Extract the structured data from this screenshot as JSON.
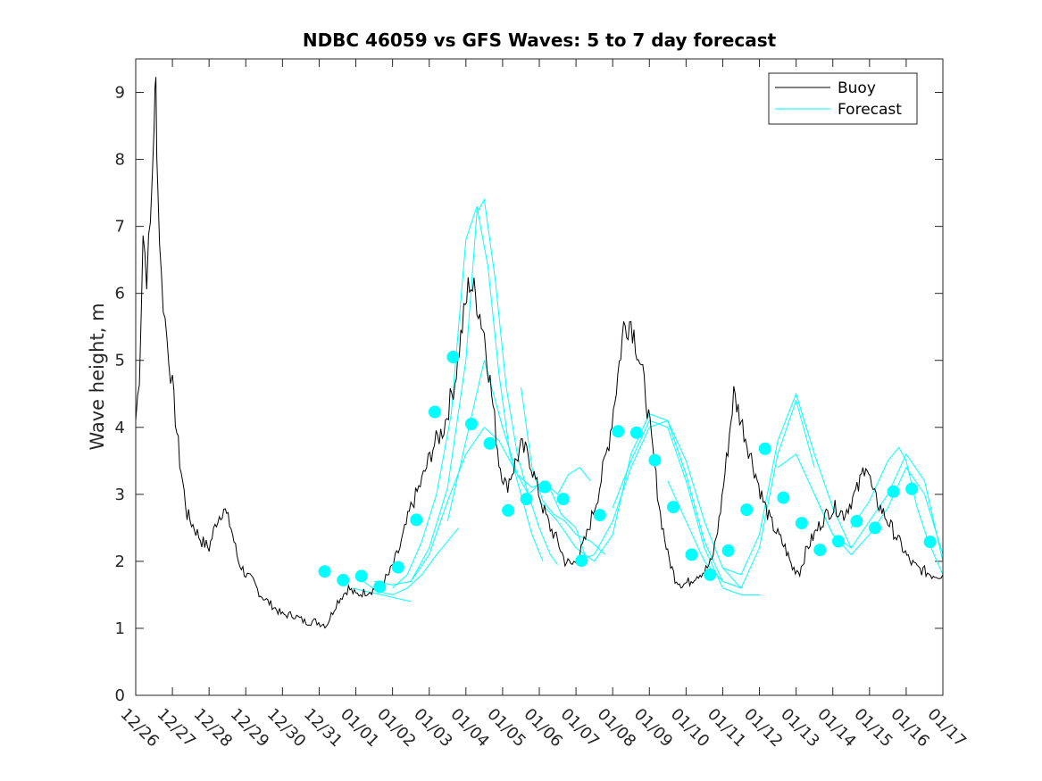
{
  "chart_data": {
    "type": "line",
    "title": "NDBC 46059 vs GFS Waves: 5 to 7 day forecast",
    "xlabel": "",
    "ylabel": "Wave height, m",
    "ylim": [
      0,
      9.5
    ],
    "yticks": [
      0,
      1,
      2,
      3,
      4,
      5,
      6,
      7,
      8,
      9
    ],
    "xlim": [
      0,
      22
    ],
    "xtick_labels": [
      "12/26",
      "12/27",
      "12/28",
      "12/29",
      "12/30",
      "12/31",
      "01/01",
      "01/02",
      "01/03",
      "01/04",
      "01/05",
      "01/06",
      "01/07",
      "01/08",
      "01/09",
      "01/10",
      "01/11",
      "01/12",
      "01/13",
      "01/14",
      "01/15",
      "01/16",
      "01/17"
    ],
    "x_units": "days since 12/26 00:00",
    "legend": {
      "position": "top-right",
      "entries": [
        "Buoy",
        "Forecast"
      ]
    },
    "colors": {
      "buoy": "#000000",
      "forecast": "#00ffff",
      "axis": "#262626"
    },
    "series": [
      {
        "name": "Buoy",
        "x": [
          0.0,
          0.1,
          0.2,
          0.3,
          0.4,
          0.5,
          0.55,
          0.6,
          0.7,
          0.8,
          0.9,
          1.0,
          1.2,
          1.4,
          1.6,
          1.8,
          2.0,
          2.2,
          2.4,
          2.6,
          2.8,
          3.0,
          3.2,
          3.4,
          3.6,
          3.8,
          4.0,
          4.3,
          4.6,
          4.9,
          5.2,
          5.5,
          5.8,
          6.0,
          6.3,
          6.6,
          6.9,
          7.2,
          7.5,
          7.8,
          8.1,
          8.4,
          8.7,
          8.9,
          9.1,
          9.3,
          9.5,
          9.7,
          9.9,
          10.1,
          10.3,
          10.5,
          10.7,
          10.9,
          11.1,
          11.3,
          11.5,
          11.7,
          11.9,
          12.1,
          12.3,
          12.6,
          12.9,
          13.1,
          13.3,
          13.5,
          13.7,
          13.9,
          14.1,
          14.3,
          14.5,
          14.7,
          14.9,
          15.1,
          15.3,
          15.5,
          15.7,
          15.9,
          16.1,
          16.3,
          16.5,
          16.7,
          16.9,
          17.1,
          17.3,
          17.5,
          17.7,
          17.9,
          18.1,
          18.3,
          18.5,
          18.7,
          18.9,
          19.1,
          19.3,
          19.5,
          19.7,
          19.9,
          20.1,
          20.3,
          20.5,
          20.7,
          20.9,
          21.1,
          21.3,
          21.5,
          21.7,
          21.9,
          22.0
        ],
        "y": [
          4.1,
          4.8,
          6.9,
          6.3,
          7.0,
          8.6,
          9.1,
          7.6,
          6.2,
          5.6,
          5.1,
          4.6,
          3.5,
          2.7,
          2.5,
          2.3,
          2.2,
          2.6,
          2.8,
          2.5,
          2.0,
          1.8,
          1.7,
          1.5,
          1.4,
          1.3,
          1.2,
          1.2,
          1.1,
          1.1,
          1.05,
          1.4,
          1.6,
          1.5,
          1.55,
          1.6,
          1.8,
          2.2,
          2.8,
          3.2,
          3.7,
          4.0,
          4.7,
          5.5,
          6.2,
          5.9,
          5.4,
          4.5,
          3.5,
          3.1,
          3.4,
          3.7,
          3.6,
          3.2,
          2.8,
          2.5,
          2.3,
          2.0,
          1.95,
          2.1,
          2.4,
          3.0,
          3.8,
          4.6,
          5.5,
          5.6,
          5.1,
          4.5,
          3.6,
          2.7,
          2.1,
          1.75,
          1.65,
          1.7,
          1.8,
          1.85,
          2.0,
          2.6,
          3.5,
          4.5,
          4.1,
          3.7,
          3.3,
          2.9,
          2.6,
          2.4,
          2.2,
          1.9,
          1.85,
          2.2,
          2.4,
          2.6,
          2.75,
          2.8,
          2.7,
          2.9,
          3.1,
          3.5,
          3.0,
          2.8,
          2.6,
          2.4,
          2.2,
          2.0,
          1.9,
          1.85,
          1.8,
          1.8,
          1.8
        ]
      },
      {
        "name": "Forecast",
        "lines": [
          {
            "x": [
              5.9,
              6.3,
              6.7,
              7.1,
              7.5
            ],
            "y": [
              1.6,
              1.55,
              1.5,
              1.45,
              1.4
            ]
          },
          {
            "x": [
              6.2,
              6.6,
              7.0,
              7.4,
              7.8,
              8.2,
              8.5,
              8.8
            ],
            "y": [
              1.7,
              1.55,
              1.5,
              1.6,
              1.8,
              2.1,
              2.3,
              2.5
            ]
          },
          {
            "x": [
              6.5,
              7.0,
              7.5,
              8.0,
              8.5,
              9.0,
              9.5
            ],
            "y": [
              1.7,
              1.65,
              1.7,
              2.1,
              2.9,
              3.6,
              4.0
            ]
          },
          {
            "x": [
              7.0,
              7.4,
              7.8,
              8.2,
              8.6,
              9.0,
              9.3,
              9.6,
              9.9,
              10.2,
              10.5,
              10.8,
              11.1
            ],
            "y": [
              1.6,
              1.8,
              2.3,
              3.0,
              4.2,
              6.8,
              7.3,
              6.4,
              4.8,
              3.6,
              3.0,
              2.4,
              2.0
            ]
          },
          {
            "x": [
              7.5,
              8.0,
              8.5,
              9.0,
              9.3,
              9.5,
              9.8,
              10.1,
              10.4,
              10.7,
              11.0,
              11.3,
              11.5
            ],
            "y": [
              1.7,
              2.2,
              3.1,
              5.0,
              7.2,
              7.4,
              6.2,
              4.6,
              3.6,
              3.0,
              2.5,
              2.1,
              1.95
            ]
          },
          {
            "x": [
              8.5,
              9.0,
              9.5,
              10.0,
              10.4,
              10.8,
              11.2,
              11.6,
              12.0,
              12.3
            ],
            "y": [
              2.6,
              3.8,
              5.0,
              4.0,
              3.3,
              3.1,
              3.2,
              2.7,
              2.5,
              2.0
            ]
          },
          {
            "x": [
              9.5,
              9.9,
              10.3,
              10.7,
              11.1,
              11.5,
              11.8,
              12.1,
              12.4
            ],
            "y": [
              4.0,
              3.8,
              3.4,
              3.0,
              3.2,
              3.0,
              3.3,
              3.4,
              3.2
            ]
          },
          {
            "x": [
              10.5,
              10.8,
              11.1,
              11.4,
              11.7,
              12.0,
              12.4,
              12.8
            ],
            "y": [
              4.6,
              3.4,
              2.9,
              2.7,
              2.6,
              2.4,
              2.3,
              2.1
            ]
          },
          {
            "x": [
              11.0,
              11.5,
              12.0,
              12.5,
              13.0,
              13.5,
              14.0,
              14.5,
              15.0,
              15.5,
              16.0
            ],
            "y": [
              2.9,
              2.6,
              2.2,
              2.0,
              2.4,
              3.6,
              4.2,
              4.1,
              3.3,
              2.3,
              1.7
            ]
          },
          {
            "x": [
              12.0,
              12.5,
              13.0,
              13.5,
              14.0,
              14.5,
              15.0,
              15.5,
              16.0,
              16.5
            ],
            "y": [
              2.0,
              2.1,
              2.6,
              3.4,
              4.0,
              4.1,
              3.5,
              2.6,
              1.9,
              1.6
            ]
          },
          {
            "x": [
              13.0,
              13.5,
              14.0,
              14.5,
              15.0,
              15.5,
              16.0,
              16.5,
              17.0
            ],
            "y": [
              2.8,
              3.5,
              4.1,
              4.0,
              3.2,
              2.2,
              1.6,
              1.5,
              1.5
            ]
          },
          {
            "x": [
              14.5,
              15.0,
              15.5,
              16.0,
              16.5,
              17.0,
              17.5,
              18.0,
              18.5
            ],
            "y": [
              3.2,
              2.6,
              2.0,
              1.7,
              1.6,
              2.2,
              3.6,
              4.4,
              3.4
            ]
          },
          {
            "x": [
              16.0,
              16.5,
              17.0,
              17.5,
              18.0,
              18.5,
              19.0,
              19.5
            ],
            "y": [
              1.9,
              1.8,
              2.4,
              3.8,
              4.5,
              3.6,
              2.8,
              2.2
            ]
          },
          {
            "x": [
              17.5,
              18.0,
              18.5,
              19.0,
              19.5,
              20.0,
              20.5,
              21.0,
              21.5,
              22.0
            ],
            "y": [
              3.4,
              3.6,
              3.0,
              2.4,
              2.1,
              2.4,
              2.8,
              3.4,
              3.0,
              2.1
            ]
          },
          {
            "x": [
              18.5,
              19.0,
              19.5,
              20.0,
              20.5,
              21.0,
              21.5,
              22.0
            ],
            "y": [
              3.0,
              2.4,
              2.2,
              2.6,
              3.0,
              3.6,
              3.2,
              2.0
            ]
          },
          {
            "x": [
              19.5,
              20.0,
              20.5,
              20.8,
              21.0,
              21.3,
              21.6,
              22.0
            ],
            "y": [
              2.5,
              2.9,
              3.5,
              3.7,
              3.5,
              2.8,
              2.3,
              1.8
            ]
          }
        ],
        "markers": {
          "x": [
            5.15,
            5.65,
            6.15,
            6.65,
            7.15,
            7.65,
            8.15,
            8.65,
            9.15,
            9.65,
            10.15,
            10.65,
            11.15,
            11.65,
            12.15,
            12.65,
            13.15,
            13.65,
            14.15,
            14.65,
            15.15,
            15.65,
            16.15,
            16.65,
            17.15,
            17.65,
            18.15,
            18.65,
            19.15,
            19.65,
            20.15,
            20.65,
            21.15,
            21.65
          ],
          "y": [
            1.85,
            1.72,
            1.78,
            1.62,
            1.91,
            2.62,
            4.23,
            5.05,
            4.05,
            3.76,
            2.76,
            2.93,
            3.11,
            2.93,
            2.01,
            2.69,
            3.94,
            3.92,
            3.51,
            2.81,
            2.1,
            1.8,
            2.16,
            2.77,
            3.68,
            2.95,
            2.57,
            2.17,
            2.3,
            2.6,
            2.5,
            3.04,
            3.08,
            2.29
          ]
        }
      }
    ]
  }
}
